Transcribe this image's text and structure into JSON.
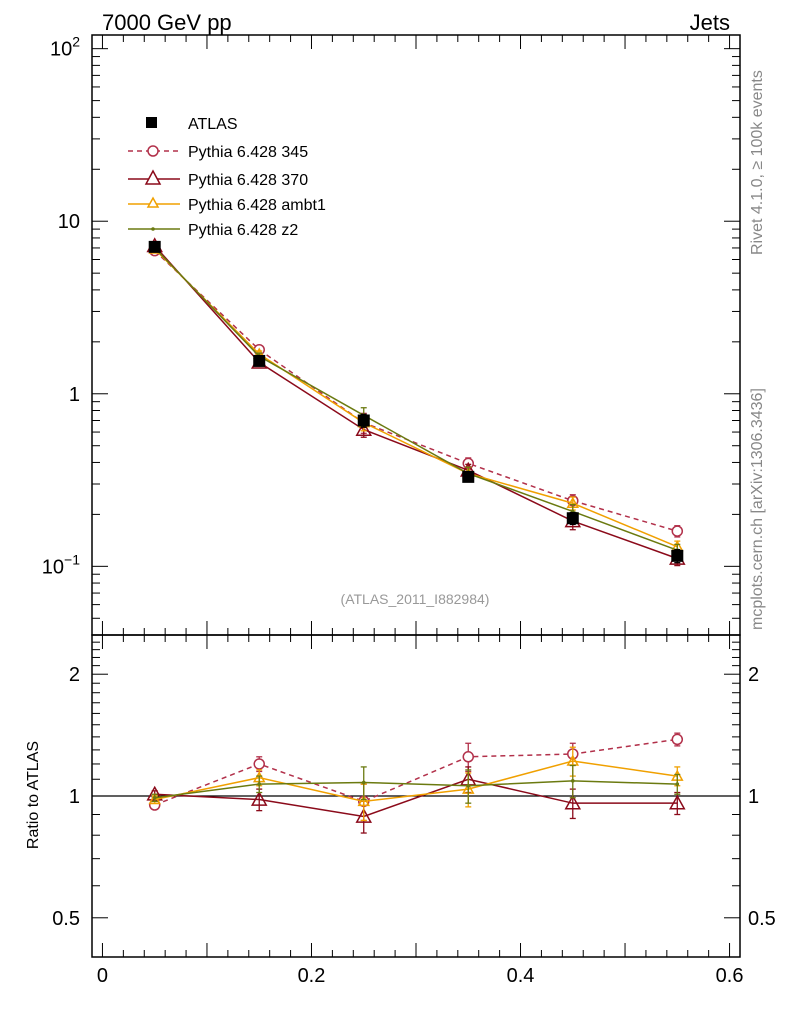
{
  "header": {
    "left": "7000 GeV pp",
    "right": "Jets"
  },
  "side_text": {
    "rivet": "Rivet 4.1.0, ≥ 100k events",
    "mcplots": "mcplots.cern.ch [arXiv:1306.3436]"
  },
  "analysis_label": "(ATLAS_2011_I882984)",
  "ratio_ylabel": "Ratio to ATLAS",
  "colors": {
    "atlas": "#000000",
    "p345": "#b2304a",
    "p370": "#8b0a1a",
    "ambt1": "#f0a000",
    "z2": "#6b7a10"
  },
  "chart_data": {
    "type": "line",
    "x": [
      0.05,
      0.15,
      0.25,
      0.35,
      0.45,
      0.55
    ],
    "xlim": [
      -0.01,
      0.61
    ],
    "xticks": [
      0,
      0.2,
      0.4,
      0.6
    ],
    "xtick_labels": [
      "0",
      "0.2",
      "0.4",
      "0.6"
    ],
    "main": {
      "yscale": "log",
      "ylim": [
        0.04,
        120
      ],
      "ytick_labels": [
        {
          "v": 0.1,
          "base": "10",
          "exp": "−1"
        },
        {
          "v": 1,
          "base": "1",
          "exp": ""
        },
        {
          "v": 10,
          "base": "10",
          "exp": ""
        },
        {
          "v": 100,
          "base": "10",
          "exp": "2"
        }
      ],
      "series": [
        {
          "name": "ATLAS",
          "key": "atlas",
          "values": [
            7.1,
            1.55,
            0.7,
            0.33,
            0.19,
            0.115
          ],
          "errors": [
            0.3,
            0.08,
            0.06,
            0.02,
            0.015,
            0.01
          ]
        },
        {
          "name": "Pythia 6.428 345",
          "key": "p345",
          "values": [
            6.75,
            1.8,
            0.68,
            0.395,
            0.24,
            0.16
          ],
          "errors": [
            0.2,
            0.08,
            0.09,
            0.03,
            0.02,
            0.012
          ]
        },
        {
          "name": "Pythia 6.428 370",
          "key": "p370",
          "values": [
            7.2,
            1.52,
            0.62,
            0.36,
            0.183,
            0.111
          ],
          "errors": [
            0.25,
            0.07,
            0.06,
            0.03,
            0.02,
            0.01
          ]
        },
        {
          "name": "Pythia 6.428 ambt1",
          "key": "ambt1",
          "values": [
            6.9,
            1.7,
            0.68,
            0.345,
            0.232,
            0.13
          ],
          "errors": [
            0.25,
            0.07,
            0.07,
            0.03,
            0.02,
            0.01
          ]
        },
        {
          "name": "Pythia 6.428 z2",
          "key": "z2",
          "values": [
            7.0,
            1.65,
            0.75,
            0.345,
            0.208,
            0.124
          ],
          "errors": [
            0.25,
            0.07,
            0.08,
            0.03,
            0.02,
            0.01
          ]
        }
      ]
    },
    "ratio": {
      "yscale": "log",
      "ylim": [
        0.4,
        2.5
      ],
      "yticks": [
        0.5,
        1,
        2
      ],
      "ytick_labels": [
        "0.5",
        "1",
        "2"
      ],
      "reference_line": 1,
      "series": [
        {
          "name": "Pythia 6.428 345",
          "key": "p345",
          "values": [
            0.95,
            1.2,
            0.97,
            1.25,
            1.27,
            1.38
          ],
          "errors": [
            0.02,
            0.05,
            0.1,
            0.1,
            0.08,
            0.05
          ]
        },
        {
          "name": "Pythia 6.428 370",
          "key": "p370",
          "values": [
            1.01,
            0.98,
            0.89,
            1.1,
            0.96,
            0.96
          ],
          "errors": [
            0.02,
            0.06,
            0.08,
            0.08,
            0.08,
            0.06
          ]
        },
        {
          "name": "Pythia 6.428 ambt1",
          "key": "ambt1",
          "values": [
            0.98,
            1.11,
            0.97,
            1.04,
            1.22,
            1.12
          ],
          "errors": [
            0.02,
            0.05,
            0.1,
            0.1,
            0.1,
            0.06
          ]
        },
        {
          "name": "Pythia 6.428 z2",
          "key": "z2",
          "values": [
            0.99,
            1.07,
            1.08,
            1.06,
            1.09,
            1.07
          ],
          "errors": [
            0.02,
            0.05,
            0.1,
            0.1,
            0.1,
            0.06
          ]
        }
      ]
    }
  }
}
